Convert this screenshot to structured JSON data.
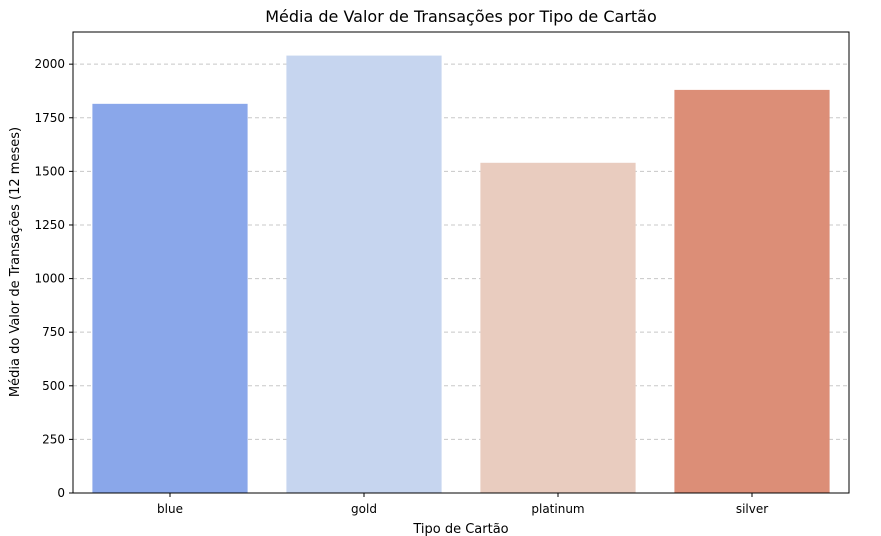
{
  "chart_data": {
    "type": "bar",
    "title": "Média de Valor de Transações por Tipo de Cartão",
    "xlabel": "Tipo de Cartão",
    "ylabel": "Média do Valor de Transações (12 meses)",
    "categories": [
      "blue",
      "gold",
      "platinum",
      "silver"
    ],
    "values": [
      1815,
      2040,
      1540,
      1880
    ],
    "colors": [
      "#8aa7ea",
      "#c6d5ef",
      "#e9ccbf",
      "#dc8e77"
    ],
    "ylim": [
      0,
      2150
    ],
    "yticks": [
      0,
      250,
      500,
      750,
      1000,
      1250,
      1500,
      1750,
      2000
    ],
    "grid": "y-dashed",
    "legend": "none"
  }
}
